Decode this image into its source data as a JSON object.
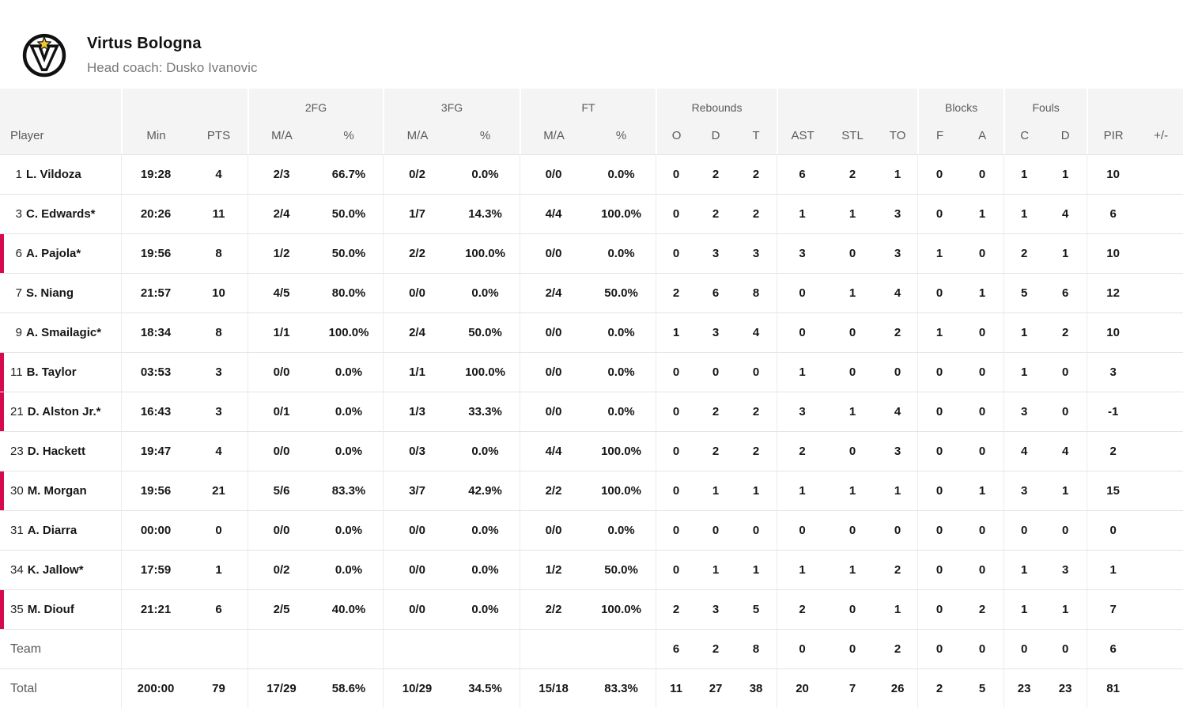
{
  "team_header": {
    "name": "Virtus Bologna",
    "coach_line": "Head coach: Dusko Ivanovic"
  },
  "colors": {
    "marker_red": "#d50b4f",
    "header_bg": "#f4f4f5",
    "logo_star_yellow": "#f0c92c",
    "logo_black": "#111111"
  },
  "table": {
    "groups": [
      {
        "label": "",
        "span": 1
      },
      {
        "label": "",
        "span": 2
      },
      {
        "label": "2FG",
        "span": 2
      },
      {
        "label": "3FG",
        "span": 2
      },
      {
        "label": "FT",
        "span": 2
      },
      {
        "label": "Rebounds",
        "span": 3
      },
      {
        "label": "",
        "span": 3
      },
      {
        "label": "Blocks",
        "span": 2
      },
      {
        "label": "Fouls",
        "span": 2
      },
      {
        "label": "",
        "span": 2
      }
    ],
    "columns": [
      {
        "key": "player",
        "label": "Player"
      },
      {
        "key": "min",
        "label": "Min"
      },
      {
        "key": "pts",
        "label": "PTS"
      },
      {
        "key": "fg2_ma",
        "label": "M/A"
      },
      {
        "key": "fg2_pct",
        "label": "%"
      },
      {
        "key": "fg3_ma",
        "label": "M/A"
      },
      {
        "key": "fg3_pct",
        "label": "%"
      },
      {
        "key": "ft_ma",
        "label": "M/A"
      },
      {
        "key": "ft_pct",
        "label": "%"
      },
      {
        "key": "reb_o",
        "label": "O"
      },
      {
        "key": "reb_d",
        "label": "D"
      },
      {
        "key": "reb_t",
        "label": "T"
      },
      {
        "key": "ast",
        "label": "AST"
      },
      {
        "key": "stl",
        "label": "STL"
      },
      {
        "key": "to",
        "label": "TO"
      },
      {
        "key": "blk_f",
        "label": "F"
      },
      {
        "key": "blk_a",
        "label": "A"
      },
      {
        "key": "foul_c",
        "label": "C"
      },
      {
        "key": "foul_d",
        "label": "D"
      },
      {
        "key": "pir",
        "label": "PIR"
      },
      {
        "key": "plus_minus",
        "label": "+/-"
      }
    ],
    "group_start_keys": [
      "min",
      "fg2_ma",
      "fg3_ma",
      "ft_ma",
      "reb_o",
      "ast",
      "blk_f",
      "foul_c",
      "pir"
    ],
    "players": [
      {
        "number": "1",
        "name": "L. Vildoza",
        "marked": false,
        "min": "19:28",
        "pts": "4",
        "fg2_ma": "2/3",
        "fg2_pct": "66.7%",
        "fg3_ma": "0/2",
        "fg3_pct": "0.0%",
        "ft_ma": "0/0",
        "ft_pct": "0.0%",
        "reb_o": "0",
        "reb_d": "2",
        "reb_t": "2",
        "ast": "6",
        "stl": "2",
        "to": "1",
        "blk_f": "0",
        "blk_a": "0",
        "foul_c": "1",
        "foul_d": "1",
        "pir": "10",
        "plus_minus": ""
      },
      {
        "number": "3",
        "name": "C. Edwards*",
        "marked": false,
        "min": "20:26",
        "pts": "11",
        "fg2_ma": "2/4",
        "fg2_pct": "50.0%",
        "fg3_ma": "1/7",
        "fg3_pct": "14.3%",
        "ft_ma": "4/4",
        "ft_pct": "100.0%",
        "reb_o": "0",
        "reb_d": "2",
        "reb_t": "2",
        "ast": "1",
        "stl": "1",
        "to": "3",
        "blk_f": "0",
        "blk_a": "1",
        "foul_c": "1",
        "foul_d": "4",
        "pir": "6",
        "plus_minus": ""
      },
      {
        "number": "6",
        "name": "A. Pajola*",
        "marked": true,
        "min": "19:56",
        "pts": "8",
        "fg2_ma": "1/2",
        "fg2_pct": "50.0%",
        "fg3_ma": "2/2",
        "fg3_pct": "100.0%",
        "ft_ma": "0/0",
        "ft_pct": "0.0%",
        "reb_o": "0",
        "reb_d": "3",
        "reb_t": "3",
        "ast": "3",
        "stl": "0",
        "to": "3",
        "blk_f": "1",
        "blk_a": "0",
        "foul_c": "2",
        "foul_d": "1",
        "pir": "10",
        "plus_minus": ""
      },
      {
        "number": "7",
        "name": "S. Niang",
        "marked": false,
        "min": "21:57",
        "pts": "10",
        "fg2_ma": "4/5",
        "fg2_pct": "80.0%",
        "fg3_ma": "0/0",
        "fg3_pct": "0.0%",
        "ft_ma": "2/4",
        "ft_pct": "50.0%",
        "reb_o": "2",
        "reb_d": "6",
        "reb_t": "8",
        "ast": "0",
        "stl": "1",
        "to": "4",
        "blk_f": "0",
        "blk_a": "1",
        "foul_c": "5",
        "foul_d": "6",
        "pir": "12",
        "plus_minus": ""
      },
      {
        "number": "9",
        "name": "A. Smailagic*",
        "marked": false,
        "min": "18:34",
        "pts": "8",
        "fg2_ma": "1/1",
        "fg2_pct": "100.0%",
        "fg3_ma": "2/4",
        "fg3_pct": "50.0%",
        "ft_ma": "0/0",
        "ft_pct": "0.0%",
        "reb_o": "1",
        "reb_d": "3",
        "reb_t": "4",
        "ast": "0",
        "stl": "0",
        "to": "2",
        "blk_f": "1",
        "blk_a": "0",
        "foul_c": "1",
        "foul_d": "2",
        "pir": "10",
        "plus_minus": ""
      },
      {
        "number": "11",
        "name": "B. Taylor",
        "marked": true,
        "min": "03:53",
        "pts": "3",
        "fg2_ma": "0/0",
        "fg2_pct": "0.0%",
        "fg3_ma": "1/1",
        "fg3_pct": "100.0%",
        "ft_ma": "0/0",
        "ft_pct": "0.0%",
        "reb_o": "0",
        "reb_d": "0",
        "reb_t": "0",
        "ast": "1",
        "stl": "0",
        "to": "0",
        "blk_f": "0",
        "blk_a": "0",
        "foul_c": "1",
        "foul_d": "0",
        "pir": "3",
        "plus_minus": ""
      },
      {
        "number": "21",
        "name": "D. Alston Jr.*",
        "marked": true,
        "min": "16:43",
        "pts": "3",
        "fg2_ma": "0/1",
        "fg2_pct": "0.0%",
        "fg3_ma": "1/3",
        "fg3_pct": "33.3%",
        "ft_ma": "0/0",
        "ft_pct": "0.0%",
        "reb_o": "0",
        "reb_d": "2",
        "reb_t": "2",
        "ast": "3",
        "stl": "1",
        "to": "4",
        "blk_f": "0",
        "blk_a": "0",
        "foul_c": "3",
        "foul_d": "0",
        "pir": "-1",
        "plus_minus": ""
      },
      {
        "number": "23",
        "name": "D. Hackett",
        "marked": false,
        "min": "19:47",
        "pts": "4",
        "fg2_ma": "0/0",
        "fg2_pct": "0.0%",
        "fg3_ma": "0/3",
        "fg3_pct": "0.0%",
        "ft_ma": "4/4",
        "ft_pct": "100.0%",
        "reb_o": "0",
        "reb_d": "2",
        "reb_t": "2",
        "ast": "2",
        "stl": "0",
        "to": "3",
        "blk_f": "0",
        "blk_a": "0",
        "foul_c": "4",
        "foul_d": "4",
        "pir": "2",
        "plus_minus": ""
      },
      {
        "number": "30",
        "name": "M. Morgan",
        "marked": true,
        "min": "19:56",
        "pts": "21",
        "fg2_ma": "5/6",
        "fg2_pct": "83.3%",
        "fg3_ma": "3/7",
        "fg3_pct": "42.9%",
        "ft_ma": "2/2",
        "ft_pct": "100.0%",
        "reb_o": "0",
        "reb_d": "1",
        "reb_t": "1",
        "ast": "1",
        "stl": "1",
        "to": "1",
        "blk_f": "0",
        "blk_a": "1",
        "foul_c": "3",
        "foul_d": "1",
        "pir": "15",
        "plus_minus": ""
      },
      {
        "number": "31",
        "name": "A. Diarra",
        "marked": false,
        "min": "00:00",
        "pts": "0",
        "fg2_ma": "0/0",
        "fg2_pct": "0.0%",
        "fg3_ma": "0/0",
        "fg3_pct": "0.0%",
        "ft_ma": "0/0",
        "ft_pct": "0.0%",
        "reb_o": "0",
        "reb_d": "0",
        "reb_t": "0",
        "ast": "0",
        "stl": "0",
        "to": "0",
        "blk_f": "0",
        "blk_a": "0",
        "foul_c": "0",
        "foul_d": "0",
        "pir": "0",
        "plus_minus": ""
      },
      {
        "number": "34",
        "name": "K. Jallow*",
        "marked": false,
        "min": "17:59",
        "pts": "1",
        "fg2_ma": "0/2",
        "fg2_pct": "0.0%",
        "fg3_ma": "0/0",
        "fg3_pct": "0.0%",
        "ft_ma": "1/2",
        "ft_pct": "50.0%",
        "reb_o": "0",
        "reb_d": "1",
        "reb_t": "1",
        "ast": "1",
        "stl": "1",
        "to": "2",
        "blk_f": "0",
        "blk_a": "0",
        "foul_c": "1",
        "foul_d": "3",
        "pir": "1",
        "plus_minus": ""
      },
      {
        "number": "35",
        "name": "M. Diouf",
        "marked": true,
        "min": "21:21",
        "pts": "6",
        "fg2_ma": "2/5",
        "fg2_pct": "40.0%",
        "fg3_ma": "0/0",
        "fg3_pct": "0.0%",
        "ft_ma": "2/2",
        "ft_pct": "100.0%",
        "reb_o": "2",
        "reb_d": "3",
        "reb_t": "5",
        "ast": "2",
        "stl": "0",
        "to": "1",
        "blk_f": "0",
        "blk_a": "2",
        "foul_c": "1",
        "foul_d": "1",
        "pir": "7",
        "plus_minus": ""
      }
    ],
    "team_row": {
      "label": "Team",
      "marked": false,
      "min": "",
      "pts": "",
      "fg2_ma": "",
      "fg2_pct": "",
      "fg3_ma": "",
      "fg3_pct": "",
      "ft_ma": "",
      "ft_pct": "",
      "reb_o": "6",
      "reb_d": "2",
      "reb_t": "8",
      "ast": "0",
      "stl": "0",
      "to": "2",
      "blk_f": "0",
      "blk_a": "0",
      "foul_c": "0",
      "foul_d": "0",
      "pir": "6",
      "plus_minus": ""
    },
    "total_row": {
      "label": "Total",
      "marked": false,
      "min": "200:00",
      "pts": "79",
      "fg2_ma": "17/29",
      "fg2_pct": "58.6%",
      "fg3_ma": "10/29",
      "fg3_pct": "34.5%",
      "ft_ma": "15/18",
      "ft_pct": "83.3%",
      "reb_o": "11",
      "reb_d": "27",
      "reb_t": "38",
      "ast": "20",
      "stl": "7",
      "to": "26",
      "blk_f": "2",
      "blk_a": "5",
      "foul_c": "23",
      "foul_d": "23",
      "pir": "81",
      "plus_minus": ""
    }
  }
}
